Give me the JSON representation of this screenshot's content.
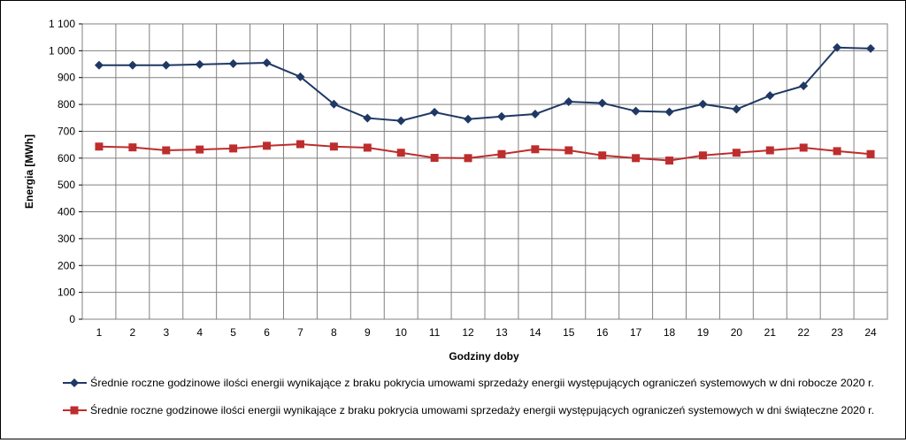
{
  "chart_data": {
    "type": "line",
    "title": "",
    "xlabel": "Godziny doby",
    "ylabel": "Energia [MWh]",
    "ylim": [
      0,
      1100
    ],
    "y_ticks": [
      0,
      100,
      200,
      300,
      400,
      500,
      600,
      700,
      800,
      900,
      1000,
      1100
    ],
    "y_tick_labels": [
      "0",
      "100",
      "200",
      "300",
      "400",
      "500",
      "600",
      "700",
      "800",
      "900",
      "1 000",
      "1 100"
    ],
    "categories": [
      "1",
      "2",
      "3",
      "4",
      "5",
      "6",
      "7",
      "8",
      "9",
      "10",
      "11",
      "12",
      "13",
      "14",
      "15",
      "16",
      "17",
      "18",
      "19",
      "20",
      "21",
      "22",
      "23",
      "24"
    ],
    "grid": true,
    "legend_position": "bottom",
    "series": [
      {
        "name": "Średnie roczne godzinowe ilości energii wynikające z braku pokrycia umowami sprzedaży energii występujących ograniczeń systemowych w dni robocze 2020 r.",
        "color": "#1f3864",
        "marker": "diamond",
        "values": [
          946,
          946,
          946,
          949,
          952,
          955,
          903,
          801,
          749,
          739,
          771,
          745,
          755,
          764,
          810,
          805,
          775,
          772,
          801,
          782,
          833,
          869,
          1012,
          1008
        ]
      },
      {
        "name": "Średnie roczne godzinowe ilości energii wynikające z braku pokrycia umowami sprzedaży energii występujących ograniczeń systemowych w dni świąteczne 2020 r.",
        "color": "#be2d2d",
        "marker": "square",
        "values": [
          643,
          640,
          629,
          632,
          636,
          646,
          652,
          643,
          639,
          620,
          601,
          600,
          615,
          633,
          629,
          610,
          600,
          591,
          610,
          620,
          629,
          639,
          626,
          615
        ]
      }
    ]
  }
}
